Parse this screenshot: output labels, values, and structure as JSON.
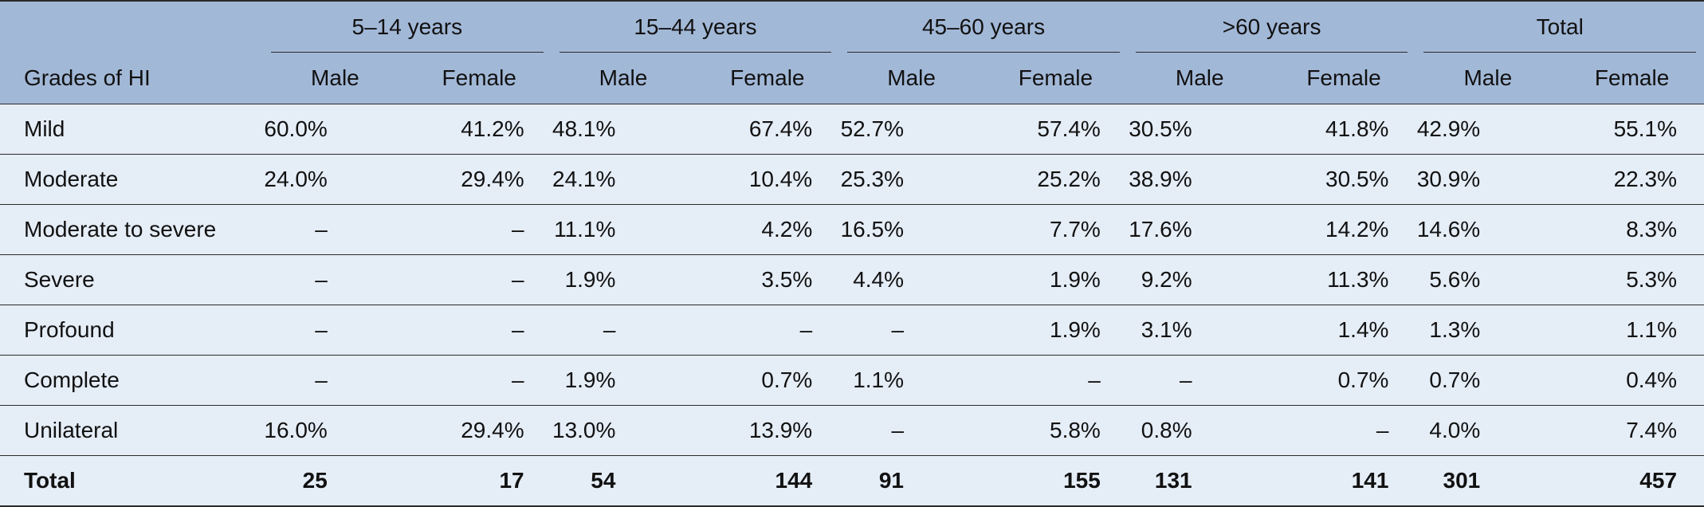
{
  "table": {
    "row_header": "Grades of HI",
    "groups": [
      "5–14 years",
      "15–44 years",
      "45–60 years",
      ">60 years",
      "Total"
    ],
    "subheaders": [
      "Male",
      "Female"
    ],
    "rows": [
      {
        "label": "Mild",
        "values": [
          "60.0%",
          "41.2%",
          "48.1%",
          "67.4%",
          "52.7%",
          "57.4%",
          "30.5%",
          "41.8%",
          "42.9%",
          "55.1%"
        ]
      },
      {
        "label": "Moderate",
        "values": [
          "24.0%",
          "29.4%",
          "24.1%",
          "10.4%",
          "25.3%",
          "25.2%",
          "38.9%",
          "30.5%",
          "30.9%",
          "22.3%"
        ]
      },
      {
        "label": "Moderate to severe",
        "values": [
          "–",
          "–",
          "11.1%",
          "4.2%",
          "16.5%",
          "7.7%",
          "17.6%",
          "14.2%",
          "14.6%",
          "8.3%"
        ]
      },
      {
        "label": "Severe",
        "values": [
          "–",
          "–",
          "1.9%",
          "3.5%",
          "4.4%",
          "1.9%",
          "9.2%",
          "11.3%",
          "5.6%",
          "5.3%"
        ]
      },
      {
        "label": "Profound",
        "values": [
          "–",
          "–",
          "–",
          "–",
          "–",
          "1.9%",
          "3.1%",
          "1.4%",
          "1.3%",
          "1.1%"
        ]
      },
      {
        "label": "Complete",
        "values": [
          "–",
          "–",
          "1.9%",
          "0.7%",
          "1.1%",
          "–",
          "–",
          "0.7%",
          "0.7%",
          "0.4%"
        ]
      },
      {
        "label": "Unilateral",
        "values": [
          "16.0%",
          "29.4%",
          "13.0%",
          "13.9%",
          "–",
          "5.8%",
          "0.8%",
          "–",
          "4.0%",
          "7.4%"
        ]
      }
    ],
    "total": {
      "label": "Total",
      "values": [
        "25",
        "17",
        "54",
        "144",
        "91",
        "155",
        "131",
        "141",
        "301",
        "457"
      ]
    }
  }
}
